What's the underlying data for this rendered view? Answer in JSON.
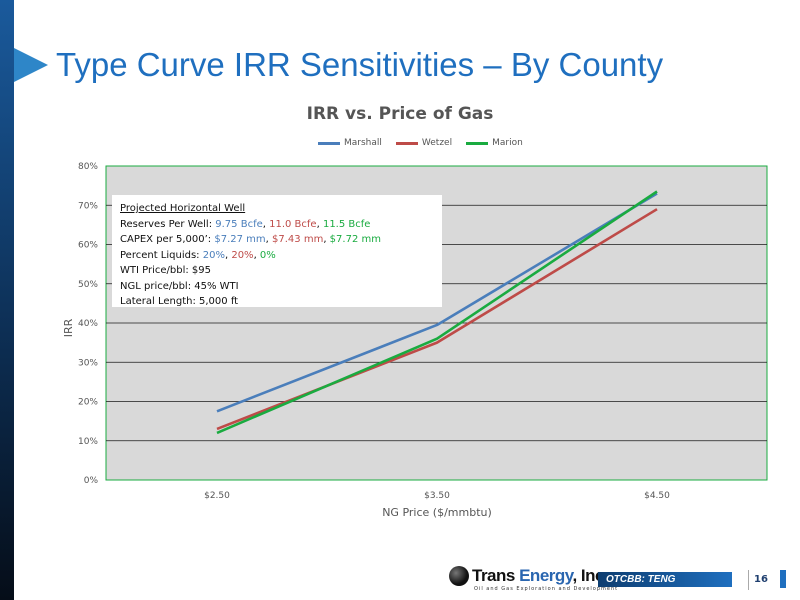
{
  "slide": {
    "title": "Type Curve IRR Sensitivities – By County",
    "page_number": "16",
    "ticker": "OTCBB: TENG",
    "logo": {
      "name_part1": "Trans ",
      "name_part2": "Energy",
      "name_part3": ", Inc.",
      "tagline": "Oil and Gas Exploration and Development"
    }
  },
  "info_box": {
    "heading": "Projected Horizontal Well",
    "reserves_label": "Reserves Per Well: ",
    "reserves_blue": "9.75 Bcfe",
    "reserves_red": "11.0 Bcfe",
    "reserves_green": "11.5 Bcfe",
    "capex_label": "CAPEX per 5,000’: ",
    "capex_blue": "$7.27 mm",
    "capex_red": "$7.43 mm",
    "capex_green": "$7.72 mm",
    "liquids_label": "Percent Liquids: ",
    "liquids_blue": "20%",
    "liquids_red": "20%",
    "liquids_green": "0%",
    "wti": "WTI Price/bbl: $95",
    "ngl": "NGL price/bbl: 45% WTI",
    "lateral": "Lateral Length: 5,000 ft",
    "sep": ", "
  },
  "colors": {
    "marshall": "#4a7ebb",
    "wetzel": "#be4b48",
    "marion": "#1aab40",
    "plot_bg": "#d9d9d9",
    "plot_border": "#1aab40"
  },
  "chart_data": {
    "type": "line",
    "title": "IRR vs. Price of Gas",
    "xlabel": "NG Price ($/mmbtu)",
    "ylabel": "IRR",
    "categories": [
      "$2.50",
      "$3.50",
      "$4.50"
    ],
    "ylim": [
      0,
      80
    ],
    "yticks": [
      "0%",
      "10%",
      "20%",
      "30%",
      "40%",
      "50%",
      "60%",
      "70%",
      "80%"
    ],
    "grid": true,
    "legend": "top-center",
    "series": [
      {
        "name": "Marshall",
        "values": [
          17.5,
          39.5,
          73.0
        ]
      },
      {
        "name": "Wetzel",
        "values": [
          13.0,
          35.0,
          69.0
        ]
      },
      {
        "name": "Marion",
        "values": [
          12.0,
          36.0,
          73.5
        ]
      }
    ]
  }
}
